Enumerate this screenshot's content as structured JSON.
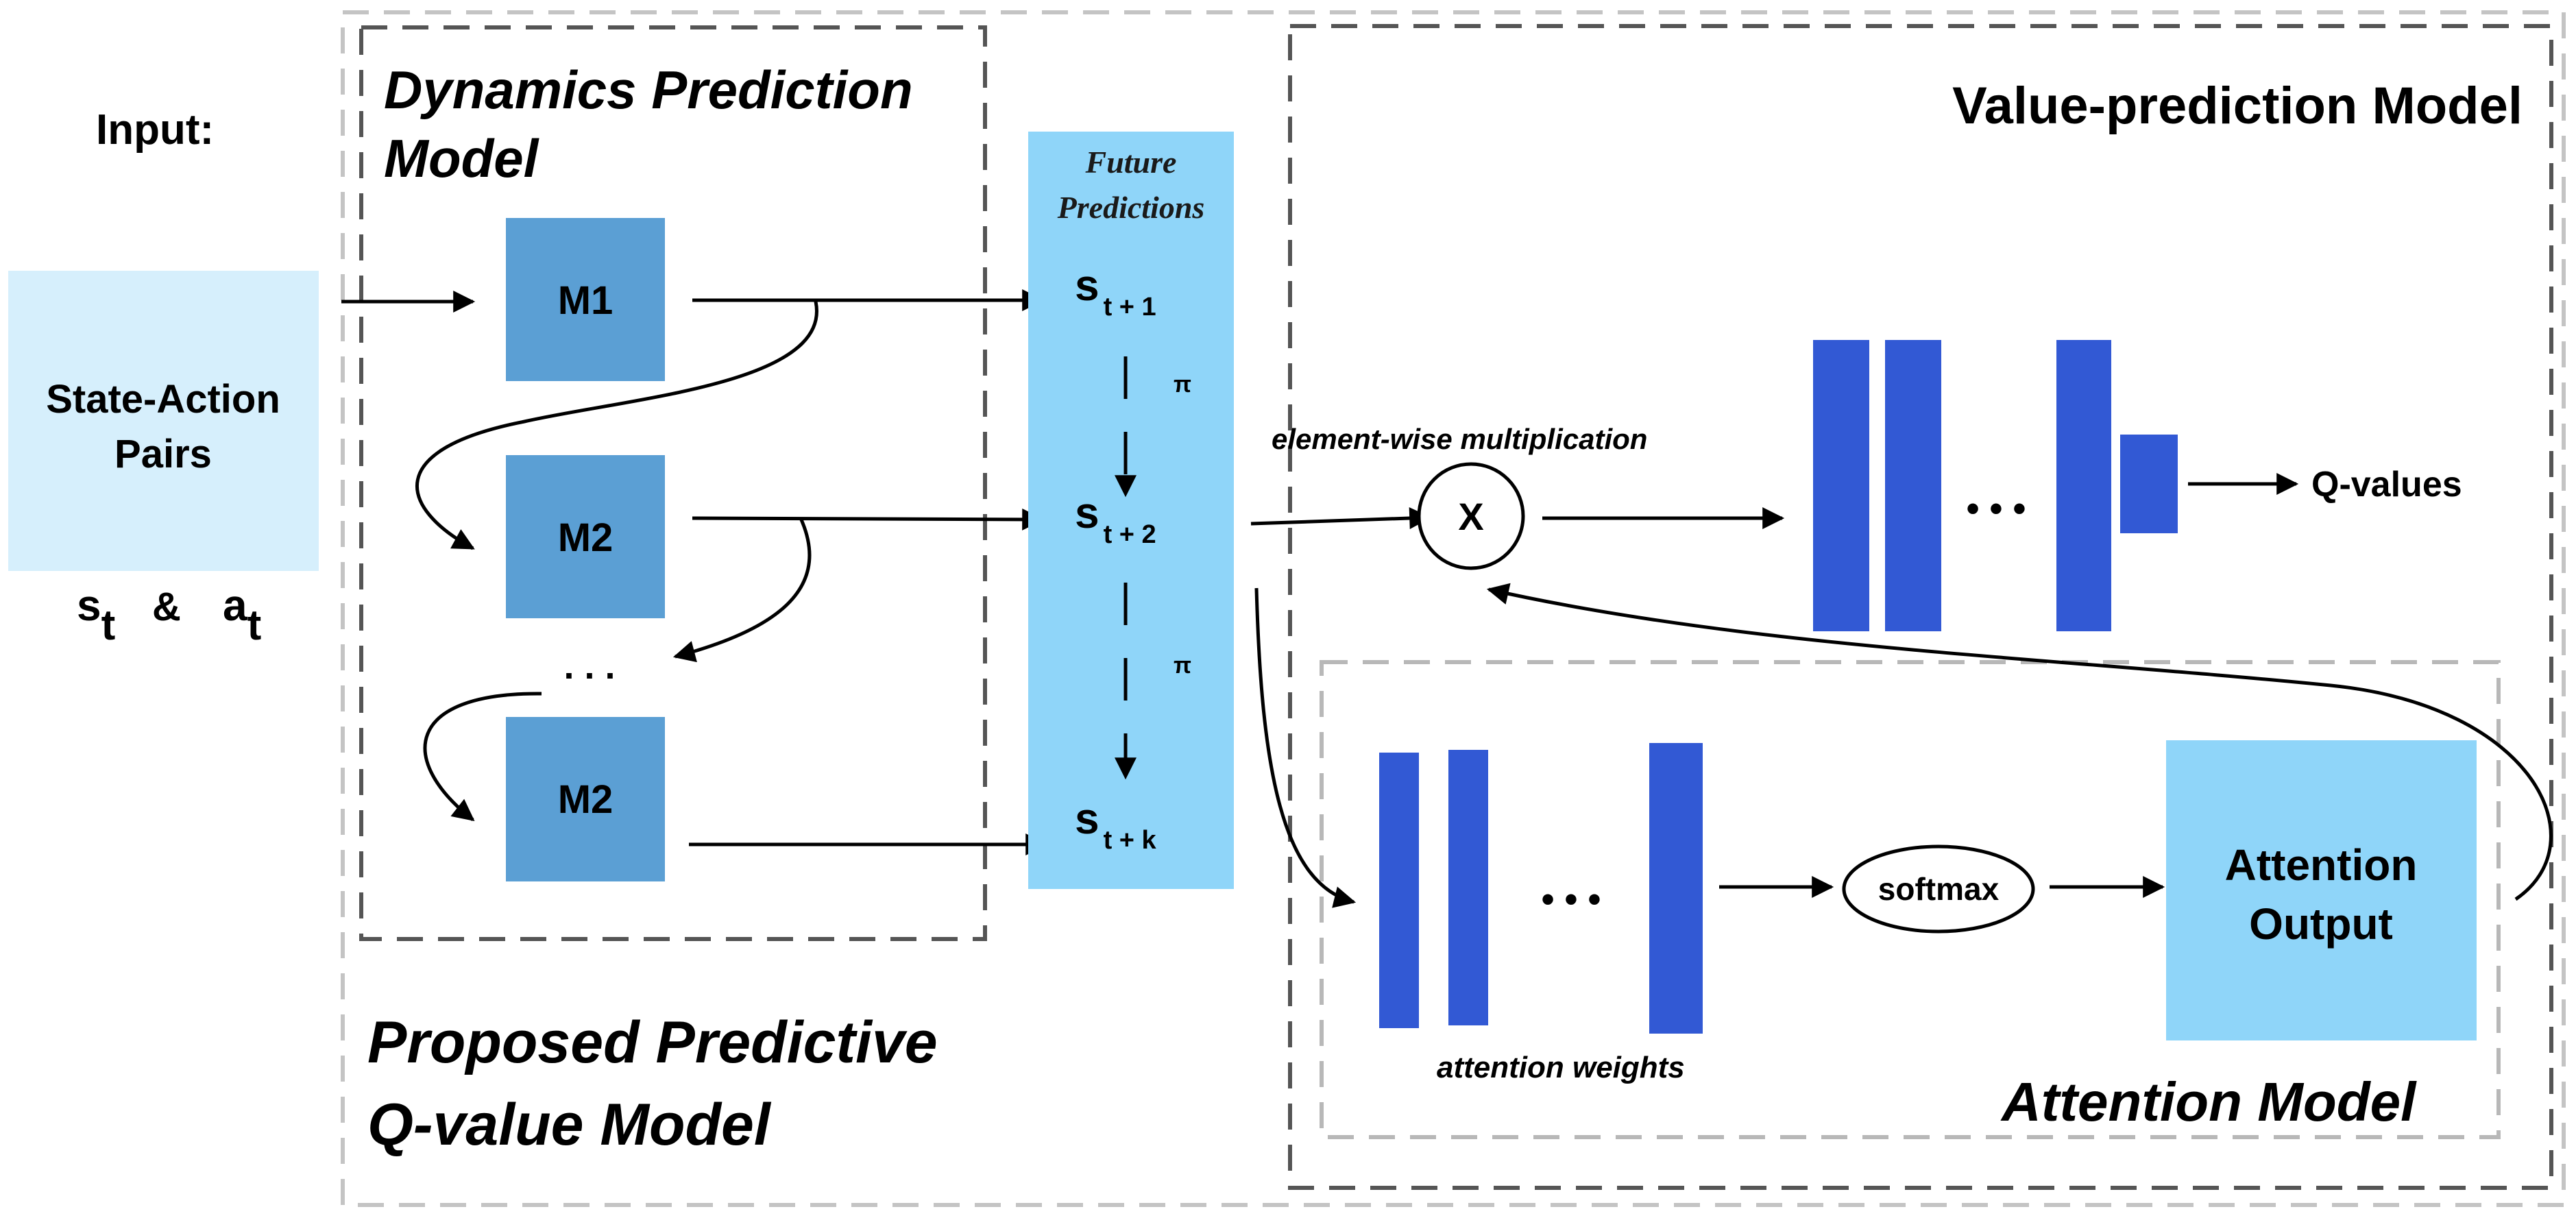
{
  "input": {
    "title": "Input:",
    "box_line1": "State-Action",
    "box_line2": "Pairs",
    "state_symbol": "s",
    "state_sub": "t",
    "amp": "&",
    "action_symbol": "a",
    "action_sub": "t"
  },
  "dynamics": {
    "title_line1": "Dynamics Prediction",
    "title_line2": "Model",
    "model1": "M1",
    "model2": "M2",
    "model3": "M2",
    "ellipsis": ". . ."
  },
  "future": {
    "title_line1": "Future",
    "title_line2": "Predictions",
    "s1": "s",
    "s1_sub": "t + 1",
    "s2": "s",
    "s2_sub": "t + 2",
    "s3": "s",
    "s3_sub": "t + k",
    "pi1": "π",
    "pi2": "π"
  },
  "value": {
    "title": "Value-prediction Model",
    "mult_label": "element-wise multiplication",
    "mult_symbol": "X",
    "ellipsis": "• • •",
    "output": "Q-values"
  },
  "attention": {
    "title": "Attention Model",
    "weights_label": "attention weights",
    "ellipsis": "• • •",
    "softmax": "softmax",
    "output_line1": "Attention",
    "output_line2": "Output"
  },
  "proposed": {
    "title_line1": "Proposed Predictive",
    "title_line2": "Q-value Model"
  },
  "colors": {
    "light_blue": "#d6effc",
    "cyan_box": "#8fd5f9",
    "model_blue": "#5b9fd4",
    "layer_blue": "#3259d4",
    "dash_gray": "#c0c0c0",
    "dash_dark": "#555555"
  }
}
